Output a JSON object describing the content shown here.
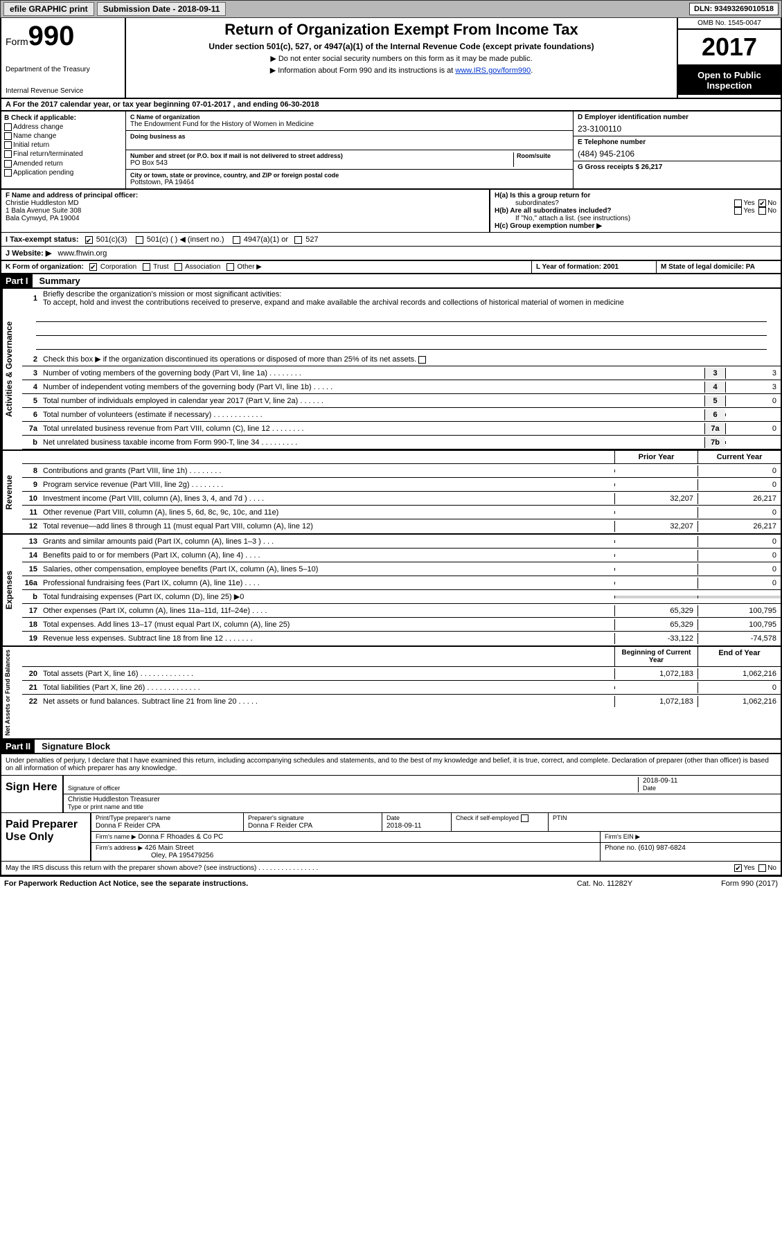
{
  "topbar": {
    "efile": "efile GRAPHIC print",
    "submission": "Submission Date - 2018-09-11",
    "dln": "DLN: 93493269010518"
  },
  "header": {
    "form_label": "Form",
    "form_num": "990",
    "dept1": "Department of the Treasury",
    "dept2": "Internal Revenue Service",
    "title": "Return of Organization Exempt From Income Tax",
    "subtitle": "Under section 501(c), 527, or 4947(a)(1) of the Internal Revenue Code (except private foundations)",
    "note1": "▶ Do not enter social security numbers on this form as it may be made public.",
    "note2_pre": "▶ Information about Form 990 and its instructions is at ",
    "note2_link": "www.IRS.gov/form990",
    "omb": "OMB No. 1545-0047",
    "year": "2017",
    "open1": "Open to Public",
    "open2": "Inspection"
  },
  "row_a": "A  For the 2017 calendar year, or tax year beginning 07-01-2017   , and ending 06-30-2018",
  "col_b": {
    "label": "B Check if applicable:",
    "items": [
      "Address change",
      "Name change",
      "Initial return",
      "Final return/terminated",
      "Amended return",
      "Application pending"
    ]
  },
  "col_c": {
    "name_lbl": "C Name of organization",
    "name": "The Endowment Fund for the History of Women in Medicine",
    "dba_lbl": "Doing business as",
    "street_lbl": "Number and street (or P.O. box if mail is not delivered to street address)",
    "room_lbl": "Room/suite",
    "street": "PO Box 543",
    "city_lbl": "City or town, state or province, country, and ZIP or foreign postal code",
    "city": "Pottstown, PA  19464"
  },
  "col_d": {
    "ein_lbl": "D Employer identification number",
    "ein": "23-3100110",
    "tel_lbl": "E Telephone number",
    "tel": "(484) 945-2106",
    "gross_lbl": "G Gross receipts $ 26,217"
  },
  "row_f": {
    "lbl": "F Name and address of principal officer:",
    "name": "Christie Huddleston MD",
    "addr1": "1 Bala Avenue Suite 308",
    "addr2": "Bala Cynwyd, PA  19004"
  },
  "row_h": {
    "ha": "H(a)  Is this a group return for",
    "ha2": "subordinates?",
    "hb": "H(b)  Are all subordinates included?",
    "hb2": "If \"No,\" attach a list. (see instructions)",
    "hc": "H(c)  Group exemption number ▶",
    "yes": "Yes",
    "no": "No"
  },
  "row_i": {
    "lbl": "I  Tax-exempt status:",
    "c3": "501(c)(3)",
    "c": "501(c) (  ) ◀ (insert no.)",
    "a1": "4947(a)(1) or",
    "s527": "527"
  },
  "row_j": {
    "lbl": "J  Website: ▶",
    "val": "www.fhwin.org"
  },
  "row_k": {
    "lbl": "K Form of organization:",
    "corp": "Corporation",
    "trust": "Trust",
    "assoc": "Association",
    "other": "Other ▶"
  },
  "row_lm": {
    "l": "L Year of formation: 2001",
    "m": "M State of legal domicile: PA"
  },
  "part1": {
    "hdr": "Part I",
    "title": "Summary"
  },
  "summary": {
    "l1_lbl": "Briefly describe the organization's mission or most significant activities:",
    "mission": "To accept, hold and invest the contributions received to preserve, expand and make available the archival records and collections of historical material of women in medicine",
    "l2": "Check this box ▶  if the organization discontinued its operations or disposed of more than 25% of its net assets.",
    "lines_ag": [
      {
        "n": "3",
        "t": "Number of voting members of the governing body (Part VI, line 1a)   .    .    .    .    .    .    .    .",
        "b": "3",
        "v": "3"
      },
      {
        "n": "4",
        "t": "Number of independent voting members of the governing body (Part VI, line 1b)    .    .    .    .    .",
        "b": "4",
        "v": "3"
      },
      {
        "n": "5",
        "t": "Total number of individuals employed in calendar year 2017 (Part V, line 2a)    .    .    .    .    .    .",
        "b": "5",
        "v": "0"
      },
      {
        "n": "6",
        "t": "Total number of volunteers (estimate if necessary)     .    .    .    .    .    .    .    .    .    .    .    .",
        "b": "6",
        "v": ""
      },
      {
        "n": "7a",
        "t": "Total unrelated business revenue from Part VIII, column (C), line 12    .    .    .    .    .    .    .    .",
        "b": "7a",
        "v": "0"
      },
      {
        "n": "b",
        "t": "Net unrelated business taxable income from Form 990-T, line 34    .    .    .    .    .    .    .    .    .",
        "b": "7b",
        "v": ""
      }
    ],
    "col_prior": "Prior Year",
    "col_current": "Current Year",
    "revenue": [
      {
        "n": "8",
        "t": "Contributions and grants (Part VIII, line 1h)    .    .    .    .    .    .    .    .",
        "p": "",
        "c": "0"
      },
      {
        "n": "9",
        "t": "Program service revenue (Part VIII, line 2g)    .    .    .    .    .    .    .    .",
        "p": "",
        "c": "0"
      },
      {
        "n": "10",
        "t": "Investment income (Part VIII, column (A), lines 3, 4, and 7d )    .    .    .    .",
        "p": "32,207",
        "c": "26,217"
      },
      {
        "n": "11",
        "t": "Other revenue (Part VIII, column (A), lines 5, 6d, 8c, 9c, 10c, and 11e)",
        "p": "",
        "c": "0"
      },
      {
        "n": "12",
        "t": "Total revenue—add lines 8 through 11 (must equal Part VIII, column (A), line 12)",
        "p": "32,207",
        "c": "26,217"
      }
    ],
    "expenses": [
      {
        "n": "13",
        "t": "Grants and similar amounts paid (Part IX, column (A), lines 1–3 )    .    .    .",
        "p": "",
        "c": "0"
      },
      {
        "n": "14",
        "t": "Benefits paid to or for members (Part IX, column (A), line 4)    .    .    .    .",
        "p": "",
        "c": "0"
      },
      {
        "n": "15",
        "t": "Salaries, other compensation, employee benefits (Part IX, column (A), lines 5–10)",
        "p": "",
        "c": "0"
      },
      {
        "n": "16a",
        "t": "Professional fundraising fees (Part IX, column (A), line 11e)    .    .    .    .",
        "p": "",
        "c": "0"
      },
      {
        "n": "b",
        "t": "Total fundraising expenses (Part IX, column (D), line 25) ▶0",
        "p": "GREY",
        "c": "GREY"
      },
      {
        "n": "17",
        "t": "Other expenses (Part IX, column (A), lines 11a–11d, 11f–24e)    .    .    .    .",
        "p": "65,329",
        "c": "100,795"
      },
      {
        "n": "18",
        "t": "Total expenses. Add lines 13–17 (must equal Part IX, column (A), line 25)",
        "p": "65,329",
        "c": "100,795"
      },
      {
        "n": "19",
        "t": "Revenue less expenses. Subtract line 18 from line 12   .    .    .    .    .    .    .",
        "p": "-33,122",
        "c": "-74,578"
      }
    ],
    "col_begin": "Beginning of Current Year",
    "col_end": "End of Year",
    "net": [
      {
        "n": "20",
        "t": "Total assets (Part X, line 16)    .    .    .    .    .    .    .    .    .    .    .    .    .",
        "p": "1,072,183",
        "c": "1,062,216"
      },
      {
        "n": "21",
        "t": "Total liabilities (Part X, line 26)    .    .    .    .    .    .    .    .    .    .    .    .    .",
        "p": "",
        "c": "0"
      },
      {
        "n": "22",
        "t": "Net assets or fund balances. Subtract line 21 from line 20    .    .    .    .    .",
        "p": "1,072,183",
        "c": "1,062,216"
      }
    ],
    "vlabels": {
      "ag": "Activities & Governance",
      "rev": "Revenue",
      "exp": "Expenses",
      "net": "Net Assets or Fund Balances"
    }
  },
  "part2": {
    "hdr": "Part II",
    "title": "Signature Block"
  },
  "sig": {
    "decl": "Under penalties of perjury, I declare that I have examined this return, including accompanying schedules and statements, and to the best of my knowledge and belief, it is true, correct, and complete. Declaration of preparer (other than officer) is based on all information of which preparer has any knowledge.",
    "sign_here": "Sign Here",
    "sig_officer": "Signature of officer",
    "date": "Date",
    "date_val": "2018-09-11",
    "name_title": "Christie Huddleston  Treasurer",
    "name_title_lbl": "Type or print name and title",
    "paid": "Paid Preparer Use Only",
    "prep_name_lbl": "Print/Type preparer's name",
    "prep_name": "Donna F Reider CPA",
    "prep_sig_lbl": "Preparer's signature",
    "prep_sig": "Donna F Reider CPA",
    "prep_date_lbl": "Date",
    "prep_date": "2018-09-11",
    "check_self": "Check   if self-employed",
    "ptin": "PTIN",
    "firm_name_lbl": "Firm's name      ▶",
    "firm_name": "Donna F Rhoades & Co PC",
    "firm_ein_lbl": "Firm's EIN ▶",
    "firm_addr_lbl": "Firm's address ▶",
    "firm_addr": "426 Main Street",
    "firm_addr2": "Oley, PA  195479256",
    "firm_phone_lbl": "Phone no.",
    "firm_phone": "(610) 987-6824",
    "discuss": "May the IRS discuss this return with the preparer shown above? (see instructions)    .    .    .    .    .    .    .    .    .    .    .    .    .    .    .    .",
    "yes": "Yes",
    "no": "No"
  },
  "footer": {
    "l": "For Paperwork Reduction Act Notice, see the separate instructions.",
    "c": "Cat. No. 11282Y",
    "r": "Form 990 (2017)"
  }
}
